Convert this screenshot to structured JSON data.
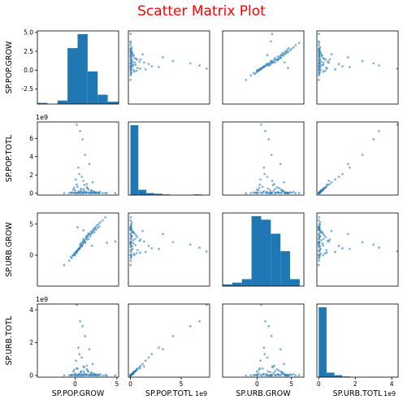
{
  "title": "Scatter Matrix Plot",
  "colors": {
    "marker": "#1f77b4",
    "title": "#ff0000",
    "axes": "#000000"
  },
  "chart_data": {
    "type": "scatter",
    "variables": [
      "SP.POP.GROW",
      "SP.POP.TOTL",
      "SP.URB.GROW",
      "SP.URB.TOTL"
    ],
    "offsets": [
      "",
      "1e9",
      "",
      "1e9"
    ],
    "ranges": [
      [
        -4.5,
        5.2
      ],
      [
        -0.2,
        7.8
      ],
      [
        -5.0,
        6.8
      ],
      [
        -0.1,
        4.35
      ]
    ],
    "ticks": [
      {
        "values": [
          -2.5,
          0.0,
          2.5,
          5.0
        ],
        "row_labels": [
          "-2.5",
          "0.0",
          "2.5",
          "5.0"
        ],
        "col_labels": [
          "0",
          "5"
        ],
        "col_values": [
          0,
          5
        ]
      },
      {
        "values": [
          0,
          2,
          4,
          6
        ],
        "row_labels": [
          "0",
          "2",
          "4",
          "6"
        ],
        "col_labels": [
          "0",
          "5"
        ],
        "col_values": [
          0,
          5
        ]
      },
      {
        "values": [
          0,
          5
        ],
        "row_labels": [
          "0",
          "5"
        ],
        "col_labels": [
          "0",
          "5"
        ],
        "col_values": [
          0,
          5
        ]
      },
      {
        "values": [
          0,
          2,
          4
        ],
        "row_labels": [
          "0",
          "2",
          "4"
        ],
        "col_labels": [
          "0",
          "2",
          "4"
        ],
        "col_values": [
          0,
          2,
          4
        ]
      }
    ],
    "diagonal": "hist",
    "histograms": [
      {
        "edges": [
          -4.5,
          -3.3,
          -2.1,
          -0.9,
          0.3,
          1.5,
          2.7,
          3.9,
          5.2
        ],
        "counts": [
          1,
          0,
          3,
          48,
          60,
          28,
          8,
          2
        ]
      },
      {
        "edges": [
          0.0,
          0.78,
          1.56,
          2.34,
          3.12,
          3.9,
          4.68,
          5.46,
          6.24,
          7.02,
          7.8
        ],
        "counts": [
          210,
          16,
          6,
          4,
          2,
          0,
          0,
          0,
          2,
          0
        ]
      },
      {
        "edges": [
          -5.0,
          -3.6,
          -2.2,
          -0.8,
          0.6,
          2.0,
          3.4,
          4.8,
          6.2
        ],
        "counts": [
          1,
          2,
          4,
          40,
          38,
          30,
          20,
          4
        ]
      },
      {
        "edges": [
          0.0,
          0.43,
          0.86,
          1.29,
          1.72,
          2.15,
          2.58,
          3.01,
          3.44,
          3.87,
          4.3
        ],
        "counts": [
          215,
          14,
          6,
          2,
          0,
          0,
          1,
          1,
          0,
          1
        ]
      }
    ],
    "points": [
      [
        -1.3,
        0.01,
        -1.6,
        0.005
      ],
      [
        -0.7,
        0.02,
        -0.9,
        0.01
      ],
      [
        -0.4,
        0.05,
        -0.5,
        0.02
      ],
      [
        -0.1,
        0.03,
        0.1,
        0.015
      ],
      [
        0.0,
        0.32,
        0.2,
        0.12
      ],
      [
        0.1,
        0.08,
        0.5,
        0.05
      ],
      [
        0.2,
        0.95,
        0.4,
        0.44
      ],
      [
        0.3,
        0.01,
        0.7,
        0.005
      ],
      [
        0.4,
        0.12,
        0.9,
        0.07
      ],
      [
        0.5,
        0.2,
        1.0,
        0.1
      ],
      [
        0.6,
        0.04,
        1.3,
        0.02
      ],
      [
        0.7,
        0.5,
        1.6,
        0.25
      ],
      [
        0.8,
        0.15,
        1.4,
        0.08
      ],
      [
        0.9,
        0.02,
        1.9,
        0.01
      ],
      [
        1.0,
        1.35,
        2.2,
        0.55
      ],
      [
        1.1,
        0.25,
        2.4,
        0.14
      ],
      [
        1.2,
        0.06,
        2.0,
        0.03
      ],
      [
        1.3,
        0.03,
        2.7,
        0.015
      ],
      [
        1.4,
        0.65,
        2.9,
        0.38
      ],
      [
        1.5,
        0.1,
        3.1,
        0.06
      ],
      [
        1.6,
        0.03,
        2.6,
        0.02
      ],
      [
        1.7,
        3.2,
        3.4,
        1.6
      ],
      [
        1.8,
        0.08,
        3.0,
        0.05
      ],
      [
        1.9,
        0.28,
        3.8,
        0.16
      ],
      [
        2.0,
        0.04,
        3.5,
        0.03
      ],
      [
        2.1,
        1.2,
        3.9,
        0.7
      ],
      [
        2.2,
        0.02,
        4.2,
        0.01
      ],
      [
        2.3,
        0.18,
        3.7,
        0.1
      ],
      [
        2.4,
        0.05,
        4.5,
        0.03
      ],
      [
        2.5,
        0.02,
        4.1,
        0.012
      ],
      [
        2.6,
        0.1,
        4.8,
        0.06
      ],
      [
        2.7,
        0.01,
        4.4,
        0.006
      ],
      [
        2.8,
        0.07,
        5.0,
        0.04
      ],
      [
        2.9,
        0.02,
        4.6,
        0.01
      ],
      [
        3.0,
        0.13,
        5.3,
        0.08
      ],
      [
        3.3,
        0.01,
        5.6,
        0.005
      ],
      [
        3.6,
        0.03,
        6.1,
        0.02
      ],
      [
        0.2,
        7.5,
        0.6,
        4.3
      ],
      [
        0.6,
        6.8,
        1.2,
        3.3
      ],
      [
        0.9,
        5.9,
        1.7,
        3.0
      ],
      [
        1.2,
        4.2,
        2.1,
        2.4
      ],
      [
        0.5,
        2.1,
        1.1,
        1.3
      ],
      [
        0.8,
        1.8,
        1.5,
        1.1
      ],
      [
        1.4,
        1.0,
        2.5,
        0.6
      ],
      [
        -0.2,
        0.4,
        0.0,
        0.25
      ],
      [
        0.3,
        0.7,
        0.8,
        0.42
      ],
      [
        1.1,
        0.9,
        2.3,
        0.5
      ],
      [
        1.5,
        0.55,
        3.2,
        0.3
      ],
      [
        0.1,
        1.5,
        0.5,
        0.9
      ],
      [
        0.4,
        2.8,
        1.0,
        1.7
      ],
      [
        0.7,
        0.3,
        1.9,
        0.2
      ],
      [
        1.0,
        0.45,
        2.6,
        0.26
      ],
      [
        -0.5,
        0.06,
        -0.3,
        0.03
      ],
      [
        -0.3,
        0.09,
        -0.1,
        0.05
      ],
      [
        1.8,
        0.02,
        3.3,
        0.012
      ],
      [
        2.0,
        0.3,
        3.6,
        0.18
      ],
      [
        1.3,
        0.12,
        3.0,
        0.07
      ],
      [
        0.9,
        0.06,
        2.1,
        0.035
      ],
      [
        0.6,
        0.01,
        1.7,
        0.006
      ],
      [
        2.4,
        0.09,
        4.3,
        0.05
      ],
      [
        -0.1,
        0.6,
        0.3,
        0.35
      ],
      [
        1.6,
        0.4,
        3.5,
        0.23
      ],
      [
        2.2,
        0.14,
        4.0,
        0.08
      ],
      [
        0.0,
        0.02,
        0.0,
        0.01
      ],
      [
        4.8,
        0.02,
        2.2,
        0.01
      ],
      [
        3.8,
        0.01,
        2.0,
        0.005
      ],
      [
        2.0,
        0.05,
        1.5,
        0.02
      ],
      [
        1.0,
        0.03,
        4.0,
        0.015
      ],
      [
        0.3,
        0.02,
        4.5,
        0.01
      ]
    ]
  }
}
